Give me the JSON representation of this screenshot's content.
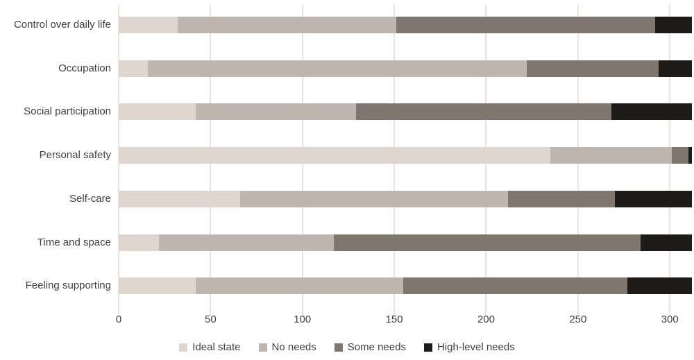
{
  "chart_data": {
    "type": "bar",
    "orientation": "horizontal",
    "stacked": true,
    "title": "",
    "xlabel": "",
    "ylabel": "",
    "categories": [
      "Control over daily life",
      "Occupation",
      "Social participation",
      "Personal safety",
      "Self-care",
      "Time and space",
      "Feeling supporting"
    ],
    "series": [
      {
        "name": "Ideal state",
        "color": "#ded6cf",
        "values": [
          32,
          16,
          42,
          235,
          66,
          22,
          42
        ]
      },
      {
        "name": "No needs",
        "color": "#bfb6af",
        "values": [
          119,
          206,
          87,
          66,
          146,
          95,
          113
        ]
      },
      {
        "name": "Some needs",
        "color": "#7f766e",
        "values": [
          141,
          72,
          139,
          9,
          58,
          167,
          122
        ]
      },
      {
        "name": "High-level needs",
        "color": "#1d1c19",
        "values": [
          20,
          18,
          44,
          2,
          42,
          28,
          35
        ]
      }
    ],
    "x_ticks": [
      0,
      50,
      100,
      150,
      200,
      250,
      300
    ],
    "xlim": [
      0,
      312
    ],
    "grid": true,
    "legend_position": "bottom"
  },
  "colors": {
    "background": "#ffffff",
    "gridline": "#ece3dc",
    "text": "#3f3f3f"
  }
}
